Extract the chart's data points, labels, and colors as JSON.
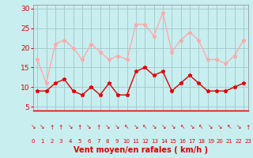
{
  "xlabel": "Vent moyen/en rafales ( km/h )",
  "background_color": "#c8eef0",
  "grid_color": "#a0c8c8",
  "x_labels": [
    "0",
    "1",
    "2",
    "3",
    "4",
    "5",
    "6",
    "7",
    "8",
    "9",
    "10",
    "11",
    "12",
    "13",
    "14",
    "15",
    "16",
    "17",
    "18",
    "19",
    "20",
    "21",
    "22",
    "23"
  ],
  "ylim": [
    4,
    31
  ],
  "yticks": [
    5,
    10,
    15,
    20,
    25,
    30
  ],
  "mean_wind": [
    9,
    9,
    11,
    12,
    9,
    8,
    10,
    8,
    11,
    8,
    8,
    14,
    15,
    13,
    14,
    9,
    11,
    13,
    11,
    9,
    9,
    9,
    10,
    11
  ],
  "gust_wind": [
    17,
    11,
    21,
    22,
    20,
    17,
    21,
    19,
    17,
    18,
    17,
    26,
    26,
    23,
    29,
    19,
    22,
    24,
    22,
    17,
    17,
    16,
    18,
    22
  ],
  "mean_color": "#dd0000",
  "gust_color": "#ffaaaa",
  "line_width": 1.0,
  "marker_size": 3.5,
  "label_color": "#dd0000",
  "tick_color": "#dd0000",
  "wind_icons": [
    "↘",
    "↘",
    "↑",
    "↑",
    "↘",
    "↑",
    "↘",
    "↑",
    "↘",
    "↘",
    "↖",
    "↘",
    "↖",
    "↘",
    "↘",
    "↘",
    "↖",
    "↘",
    "↖",
    "↘",
    "↘",
    "↖",
    "↘",
    "↑"
  ]
}
